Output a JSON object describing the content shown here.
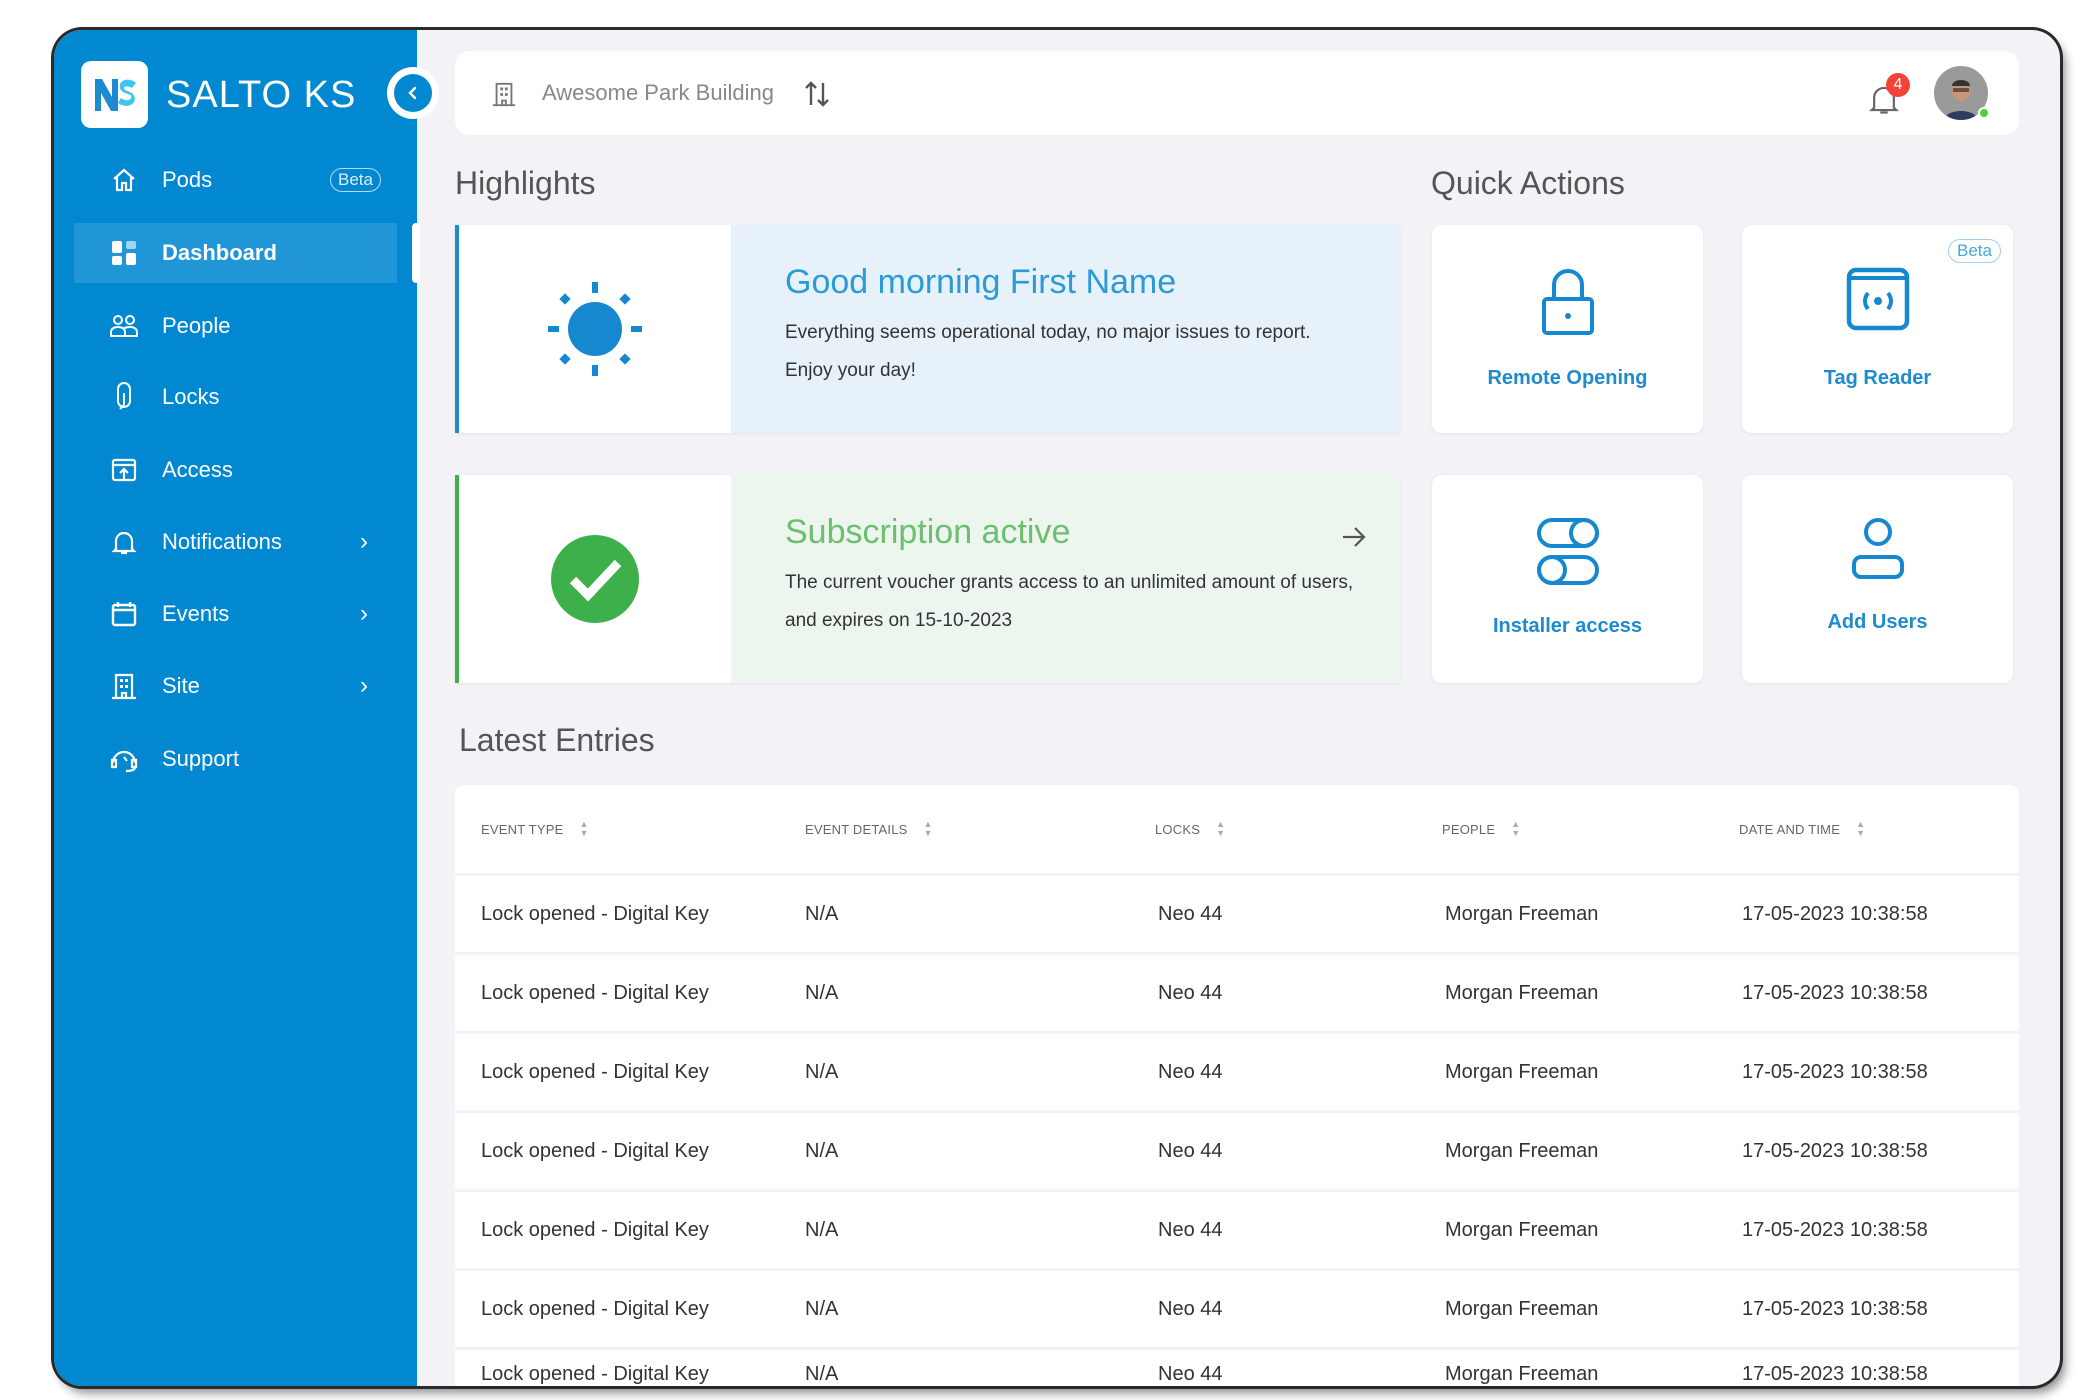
{
  "app": {
    "brand": "SALTO KS"
  },
  "sidebar": {
    "items": [
      {
        "label": "Pods",
        "badge": "Beta",
        "icon": "home-icon"
      },
      {
        "label": "Dashboard",
        "icon": "dashboard-icon",
        "active": true
      },
      {
        "label": "People",
        "icon": "people-icon"
      },
      {
        "label": "Locks",
        "icon": "lock-device-icon"
      },
      {
        "label": "Access",
        "icon": "access-icon"
      },
      {
        "label": "Notifications",
        "icon": "bell-icon",
        "chevron": "›"
      },
      {
        "label": "Events",
        "icon": "calendar-icon",
        "chevron": "›"
      },
      {
        "label": "Site",
        "icon": "building-icon",
        "chevron": "›"
      },
      {
        "label": "Support",
        "icon": "support-icon"
      }
    ]
  },
  "topbar": {
    "site_name": "Awesome Park Building",
    "notification_count": "4"
  },
  "highlights": {
    "title": "Highlights",
    "greeting": {
      "title": "Good morning First Name",
      "line1": "Everything seems operational today, no major issues to report.",
      "line2": "Enjoy your day!"
    },
    "subscription": {
      "title": "Subscription active",
      "line1": "The current voucher grants access to an unlimited amount of users,",
      "line2": "and expires on 15-10-2023"
    }
  },
  "quick_actions": {
    "title": "Quick Actions",
    "items": [
      {
        "label": "Remote Opening"
      },
      {
        "label": "Tag Reader",
        "badge": "Beta"
      },
      {
        "label": "Installer access"
      },
      {
        "label": "Add Users"
      }
    ]
  },
  "latest_entries": {
    "title": "Latest Entries",
    "columns": [
      "EVENT TYPE",
      "EVENT DETAILS",
      "LOCKS",
      "PEOPLE",
      "DATE AND TIME"
    ],
    "rows": [
      [
        "Lock opened - Digital Key",
        "N/A",
        "Neo 44",
        "Morgan Freeman",
        "17-05-2023 10:38:58"
      ],
      [
        "Lock opened - Digital Key",
        "N/A",
        "Neo 44",
        "Morgan Freeman",
        "17-05-2023 10:38:58"
      ],
      [
        "Lock opened - Digital Key",
        "N/A",
        "Neo 44",
        "Morgan Freeman",
        "17-05-2023 10:38:58"
      ],
      [
        "Lock opened - Digital Key",
        "N/A",
        "Neo 44",
        "Morgan Freeman",
        "17-05-2023 10:38:58"
      ],
      [
        "Lock opened - Digital Key",
        "N/A",
        "Neo 44",
        "Morgan Freeman",
        "17-05-2023 10:38:58"
      ],
      [
        "Lock opened - Digital Key",
        "N/A",
        "Neo 44",
        "Morgan Freeman",
        "17-05-2023 10:38:58"
      ],
      [
        "Lock opened - Digital Key",
        "N/A",
        "Neo 44",
        "Morgan Freeman",
        "17-05-2023 10:38:58"
      ]
    ]
  },
  "colors": {
    "primary": "#0288D1",
    "success": "#3DB04B",
    "accent_text": "#2A9BD8",
    "badge": "#F44336"
  }
}
